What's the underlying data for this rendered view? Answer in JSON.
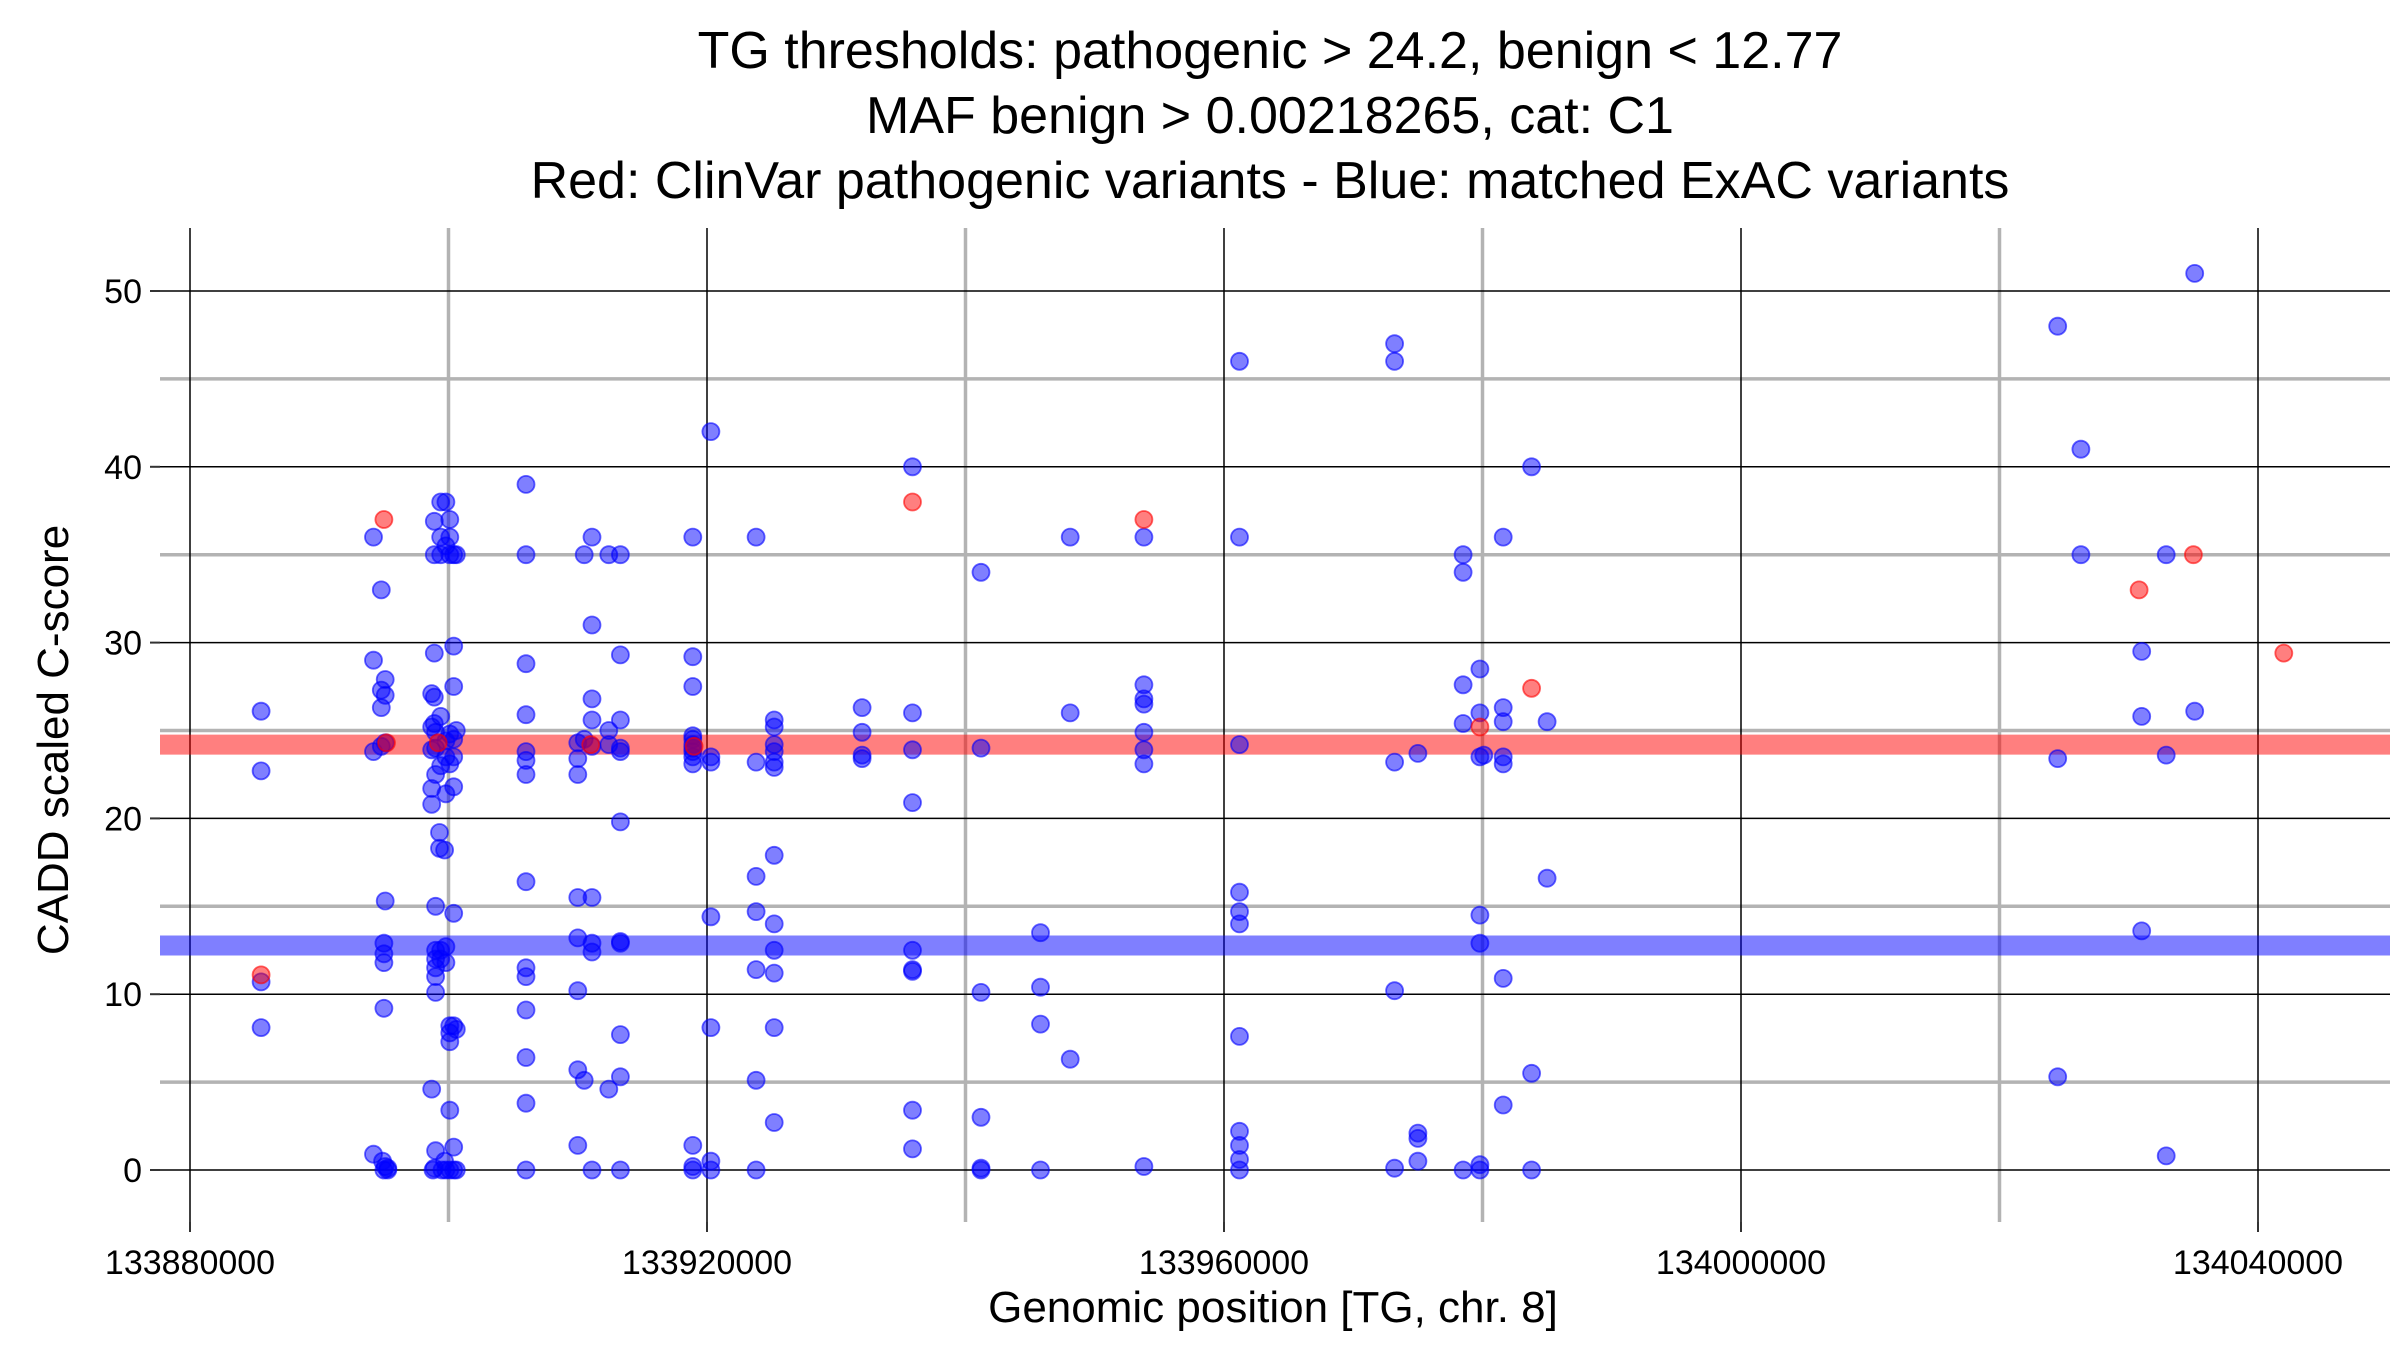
{
  "chart_data": {
    "type": "scatter",
    "title_lines": [
      "TG thresholds: pathogenic > 24.2, benign < 12.77",
      "MAF benign > 0.00218265, cat: C1",
      "Red: ClinVar pathogenic variants - Blue: matched ExAC variants"
    ],
    "xlabel": "Genomic position [TG, chr. 8]",
    "ylabel": "CADD scaled C-score",
    "xlim": [
      133880000,
      134047000
    ],
    "ylim": [
      -3,
      53.5
    ],
    "xticks": [
      133880000,
      133920000,
      133960000,
      134000000,
      134040000
    ],
    "yticks": [
      0,
      10,
      20,
      30,
      40,
      50
    ],
    "x_major_grid": [
      133880000,
      133920000,
      133960000,
      134000000,
      134040000
    ],
    "x_minor_grid": [
      133900000,
      133940000,
      133980000,
      134020000
    ],
    "y_major_grid": [
      0,
      10,
      20,
      30,
      40,
      50
    ],
    "y_minor_grid": [
      5,
      15,
      25,
      35,
      45
    ],
    "thresholds": [
      {
        "name": "pathogenic",
        "value": 24.2,
        "color": "#ff0000"
      },
      {
        "name": "benign",
        "value": 12.77,
        "color": "#0000ff"
      }
    ],
    "series": [
      {
        "name": "matched ExAC variants",
        "color": "#0000ff",
        "points": [
          [
            133885500,
            26.1
          ],
          [
            133885500,
            22.7
          ],
          [
            133885500,
            10.7
          ],
          [
            133885500,
            8.1
          ],
          [
            133894200,
            36.0
          ],
          [
            133894200,
            29.0
          ],
          [
            133894200,
            23.8
          ],
          [
            133894200,
            0.9
          ],
          [
            133894800,
            33.0
          ],
          [
            133894800,
            27.3
          ],
          [
            133894800,
            26.3
          ],
          [
            133894800,
            24.1
          ],
          [
            133895100,
            27.9
          ],
          [
            133895100,
            27.0
          ],
          [
            133895100,
            24.3
          ],
          [
            133895100,
            15.3
          ],
          [
            133895000,
            12.9
          ],
          [
            133895000,
            12.3
          ],
          [
            133895000,
            11.8
          ],
          [
            133895000,
            9.2
          ],
          [
            133894900,
            0.5
          ],
          [
            133895100,
            0.2
          ],
          [
            133895300,
            0.1
          ],
          [
            133895300,
            0.0
          ],
          [
            133895000,
            0.0
          ],
          [
            133898700,
            27.1
          ],
          [
            133898700,
            25.2
          ],
          [
            133898700,
            23.9
          ],
          [
            133898700,
            21.7
          ],
          [
            133898700,
            20.8
          ],
          [
            133898700,
            4.6
          ],
          [
            133898900,
            36.9
          ],
          [
            133898900,
            35.0
          ],
          [
            133898900,
            29.4
          ],
          [
            133898900,
            26.9
          ],
          [
            133898900,
            25.4
          ],
          [
            133899000,
            24.9
          ],
          [
            133899000,
            24.0
          ],
          [
            133899000,
            22.5
          ],
          [
            133899000,
            15.0
          ],
          [
            133899000,
            12.5
          ],
          [
            133899000,
            12.0
          ],
          [
            133899000,
            11.5
          ],
          [
            133899000,
            11.0
          ],
          [
            133899000,
            10.1
          ],
          [
            133899000,
            1.1
          ],
          [
            133898900,
            0.1
          ],
          [
            133898800,
            0.0
          ],
          [
            133899400,
            38.0
          ],
          [
            133899400,
            36.0
          ],
          [
            133899400,
            35.0
          ],
          [
            133899400,
            25.8
          ],
          [
            133899400,
            23.0
          ],
          [
            133899300,
            19.2
          ],
          [
            133899300,
            18.3
          ],
          [
            133899400,
            12.5
          ],
          [
            133899400,
            12.0
          ],
          [
            133899500,
            0.0
          ],
          [
            133899800,
            38.0
          ],
          [
            133899800,
            35.5
          ],
          [
            133899800,
            24.4
          ],
          [
            133899800,
            23.5
          ],
          [
            133899800,
            21.4
          ],
          [
            133899700,
            18.2
          ],
          [
            133899800,
            12.7
          ],
          [
            133899800,
            11.8
          ],
          [
            133899700,
            0.5
          ],
          [
            133899800,
            0.0
          ],
          [
            133900100,
            37.0
          ],
          [
            133900100,
            36.0
          ],
          [
            133900100,
            35.0
          ],
          [
            133900100,
            24.8
          ],
          [
            133900100,
            23.1
          ],
          [
            133900100,
            8.2
          ],
          [
            133900100,
            7.8
          ],
          [
            133900100,
            7.3
          ],
          [
            133900100,
            3.4
          ],
          [
            133900100,
            0.0
          ],
          [
            133900400,
            35.0
          ],
          [
            133900400,
            29.8
          ],
          [
            133900400,
            27.5
          ],
          [
            133900400,
            24.5
          ],
          [
            133900400,
            23.5
          ],
          [
            133900400,
            21.8
          ],
          [
            133900400,
            14.6
          ],
          [
            133900400,
            8.2
          ],
          [
            133900400,
            1.3
          ],
          [
            133900400,
            0.0
          ],
          [
            133900600,
            35.0
          ],
          [
            133900600,
            25.0
          ],
          [
            133900600,
            8.0
          ],
          [
            133900600,
            0.0
          ],
          [
            133906000,
            39.0
          ],
          [
            133906000,
            35.0
          ],
          [
            133906000,
            28.8
          ],
          [
            133906000,
            25.9
          ],
          [
            133906000,
            23.8
          ],
          [
            133906000,
            23.3
          ],
          [
            133906000,
            22.5
          ],
          [
            133906000,
            16.4
          ],
          [
            133906000,
            11.5
          ],
          [
            133906000,
            11.0
          ],
          [
            133906000,
            9.1
          ],
          [
            133906000,
            6.4
          ],
          [
            133906000,
            3.8
          ],
          [
            133906000,
            0.0
          ],
          [
            133910000,
            24.3
          ],
          [
            133910000,
            23.4
          ],
          [
            133910000,
            22.5
          ],
          [
            133910000,
            15.5
          ],
          [
            133910000,
            13.2
          ],
          [
            133910000,
            10.2
          ],
          [
            133910000,
            5.7
          ],
          [
            133910000,
            1.4
          ],
          [
            133910500,
            35.0
          ],
          [
            133910500,
            24.5
          ],
          [
            133910500,
            5.1
          ],
          [
            133911100,
            36.0
          ],
          [
            133911100,
            31.0
          ],
          [
            133911100,
            26.8
          ],
          [
            133911100,
            25.6
          ],
          [
            133911100,
            24.1
          ],
          [
            133911100,
            15.5
          ],
          [
            133911100,
            12.9
          ],
          [
            133911100,
            12.4
          ],
          [
            133911100,
            0.0
          ],
          [
            133912400,
            35.0
          ],
          [
            133912400,
            25.0
          ],
          [
            133912400,
            24.2
          ],
          [
            133912400,
            4.6
          ],
          [
            133913300,
            35.0
          ],
          [
            133913300,
            29.3
          ],
          [
            133913300,
            25.6
          ],
          [
            133913300,
            24.0
          ],
          [
            133913300,
            23.8
          ],
          [
            133913300,
            19.8
          ],
          [
            133913300,
            13.0
          ],
          [
            133913300,
            12.9
          ],
          [
            133913300,
            7.7
          ],
          [
            133913300,
            5.3
          ],
          [
            133913300,
            0.0
          ],
          [
            133918900,
            36.0
          ],
          [
            133918900,
            29.2
          ],
          [
            133918900,
            27.5
          ],
          [
            133918900,
            24.7
          ],
          [
            133918900,
            24.5
          ],
          [
            133918900,
            24.2
          ],
          [
            133918900,
            24.0
          ],
          [
            133918900,
            23.8
          ],
          [
            133918900,
            23.5
          ],
          [
            133918900,
            23.1
          ],
          [
            133918900,
            1.4
          ],
          [
            133918900,
            0.2
          ],
          [
            133918900,
            0.0
          ],
          [
            133920300,
            42.0
          ],
          [
            133920300,
            23.5
          ],
          [
            133920300,
            23.2
          ],
          [
            133920300,
            14.4
          ],
          [
            133920300,
            8.1
          ],
          [
            133920300,
            0.5
          ],
          [
            133920300,
            0.0
          ],
          [
            133923800,
            36.0
          ],
          [
            133923800,
            23.2
          ],
          [
            133923800,
            16.7
          ],
          [
            133923800,
            14.7
          ],
          [
            133923800,
            11.4
          ],
          [
            133923800,
            5.1
          ],
          [
            133923800,
            0.0
          ],
          [
            133925200,
            25.6
          ],
          [
            133925200,
            25.2
          ],
          [
            133925200,
            24.2
          ],
          [
            133925200,
            23.8
          ],
          [
            133925200,
            23.2
          ],
          [
            133925200,
            22.9
          ],
          [
            133925200,
            17.9
          ],
          [
            133925200,
            14.0
          ],
          [
            133925200,
            12.5
          ],
          [
            133925200,
            11.2
          ],
          [
            133925200,
            8.1
          ],
          [
            133925200,
            2.7
          ],
          [
            133932000,
            26.3
          ],
          [
            133932000,
            24.9
          ],
          [
            133932000,
            23.6
          ],
          [
            133932000,
            23.4
          ],
          [
            133935900,
            40.0
          ],
          [
            133935900,
            26.0
          ],
          [
            133935900,
            23.9
          ],
          [
            133935900,
            20.9
          ],
          [
            133935900,
            12.5
          ],
          [
            133935900,
            11.4
          ],
          [
            133935900,
            11.3
          ],
          [
            133935900,
            3.4
          ],
          [
            133935900,
            1.2
          ],
          [
            133941200,
            34.0
          ],
          [
            133941200,
            24.0
          ],
          [
            133941200,
            10.1
          ],
          [
            133941200,
            3.0
          ],
          [
            133941200,
            0.1
          ],
          [
            133941200,
            0.0
          ],
          [
            133945800,
            13.5
          ],
          [
            133945800,
            10.4
          ],
          [
            133945800,
            8.3
          ],
          [
            133945800,
            0.0
          ],
          [
            133948100,
            36.0
          ],
          [
            133948100,
            26.0
          ],
          [
            133948100,
            6.3
          ],
          [
            133953800,
            36.0
          ],
          [
            133953800,
            27.6
          ],
          [
            133953800,
            26.8
          ],
          [
            133953800,
            26.5
          ],
          [
            133953800,
            24.9
          ],
          [
            133953800,
            23.9
          ],
          [
            133953800,
            23.1
          ],
          [
            133953800,
            0.2
          ],
          [
            133961200,
            46.0
          ],
          [
            133961200,
            36.0
          ],
          [
            133961200,
            24.2
          ],
          [
            133961200,
            15.8
          ],
          [
            133961200,
            14.7
          ],
          [
            133961200,
            14.0
          ],
          [
            133961200,
            7.6
          ],
          [
            133961200,
            2.2
          ],
          [
            133961200,
            1.4
          ],
          [
            133961200,
            0.6
          ],
          [
            133961200,
            0.0
          ],
          [
            133973200,
            47.0
          ],
          [
            133973200,
            46.0
          ],
          [
            133973200,
            23.2
          ],
          [
            133973200,
            10.2
          ],
          [
            133973200,
            0.1
          ],
          [
            133975000,
            23.7
          ],
          [
            133975000,
            2.1
          ],
          [
            133975000,
            1.8
          ],
          [
            133975000,
            0.5
          ],
          [
            133978500,
            35.0
          ],
          [
            133978500,
            34.0
          ],
          [
            133978500,
            27.6
          ],
          [
            133978500,
            25.4
          ],
          [
            133978500,
            0.0
          ],
          [
            133979800,
            28.5
          ],
          [
            133979800,
            26.0
          ],
          [
            133979800,
            23.5
          ],
          [
            133979800,
            14.5
          ],
          [
            133979800,
            12.9
          ],
          [
            133979800,
            0.3
          ],
          [
            133979800,
            0.0
          ],
          [
            133980100,
            23.6
          ],
          [
            133981600,
            36.0
          ],
          [
            133981600,
            26.3
          ],
          [
            133981600,
            25.5
          ],
          [
            133981600,
            23.5
          ],
          [
            133981600,
            23.1
          ],
          [
            133981600,
            10.9
          ],
          [
            133981600,
            3.7
          ],
          [
            133983800,
            40.0
          ],
          [
            133983800,
            5.5
          ],
          [
            133983800,
            0.0
          ],
          [
            133985000,
            25.5
          ],
          [
            133985000,
            16.6
          ],
          [
            134024500,
            48.0
          ],
          [
            134024500,
            23.4
          ],
          [
            134024500,
            5.3
          ],
          [
            134026300,
            41.0
          ],
          [
            134026300,
            35.0
          ],
          [
            134031000,
            29.5
          ],
          [
            134031000,
            25.8
          ],
          [
            134031000,
            13.6
          ],
          [
            134032900,
            35.0
          ],
          [
            134032900,
            23.6
          ],
          [
            134032900,
            0.8
          ],
          [
            134035100,
            51.0
          ],
          [
            134035100,
            26.1
          ]
        ]
      },
      {
        "name": "ClinVar pathogenic variants",
        "color": "#ff0000",
        "points": [
          [
            133885500,
            11.1
          ],
          [
            133895000,
            37.0
          ],
          [
            133895200,
            24.3
          ],
          [
            133899200,
            24.3
          ],
          [
            133911000,
            24.2
          ],
          [
            133919000,
            24.1
          ],
          [
            133935900,
            38.0
          ],
          [
            133953800,
            37.0
          ],
          [
            133979800,
            25.2
          ],
          [
            133983800,
            27.4
          ],
          [
            134030800,
            33.0
          ],
          [
            134035000,
            35.0
          ],
          [
            134042000,
            29.4
          ]
        ]
      }
    ]
  }
}
